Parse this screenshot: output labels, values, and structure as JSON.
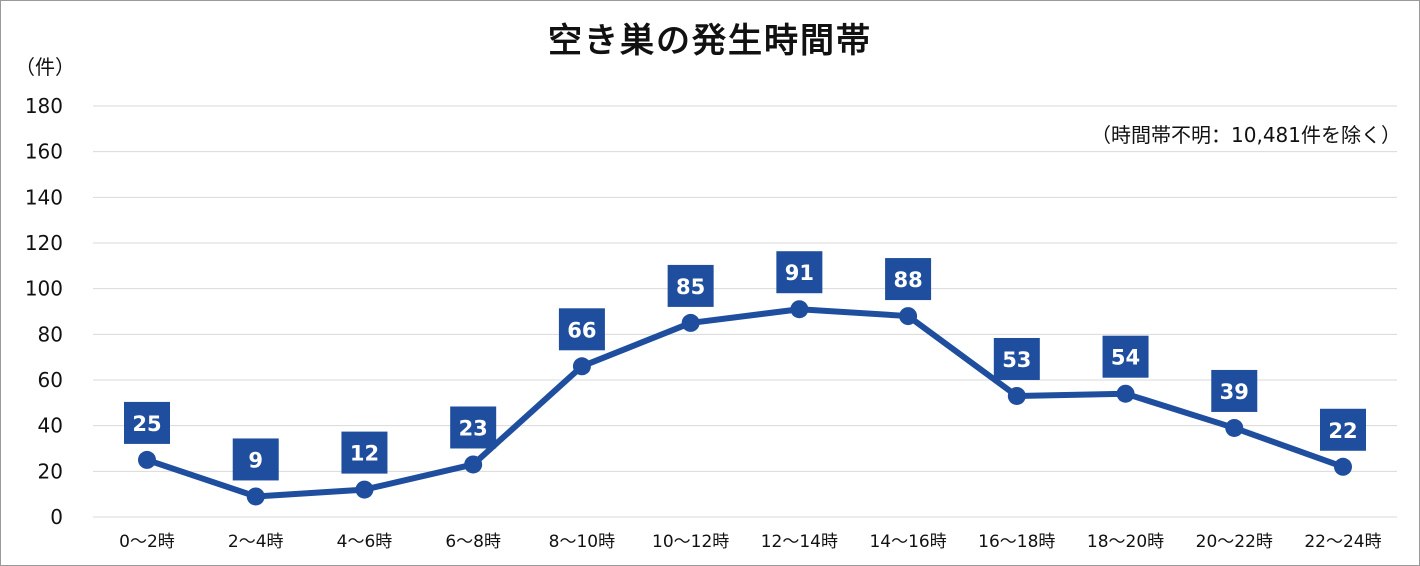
{
  "chart_data": {
    "type": "line",
    "title": "空き巣の発生時間帯",
    "y_unit": "（件）",
    "note": "（時間帯不明：10,481件を除く）",
    "categories": [
      "0～2時",
      "2～4時",
      "4～6時",
      "6～8時",
      "8～10時",
      "10～12時",
      "12～14時",
      "14～16時",
      "16～18時",
      "18～20時",
      "20～22時",
      "22～24時"
    ],
    "values": [
      25,
      9,
      12,
      23,
      66,
      85,
      91,
      88,
      53,
      54,
      39,
      22
    ],
    "ylim": [
      0,
      180
    ],
    "yticks": [
      0,
      20,
      40,
      60,
      80,
      100,
      120,
      140,
      160,
      180
    ],
    "grid": true,
    "legend": "none",
    "colors": {
      "line": "#1f4e9e",
      "label_box": "#1f4e9e",
      "grid": "#d9d9d9"
    }
  }
}
